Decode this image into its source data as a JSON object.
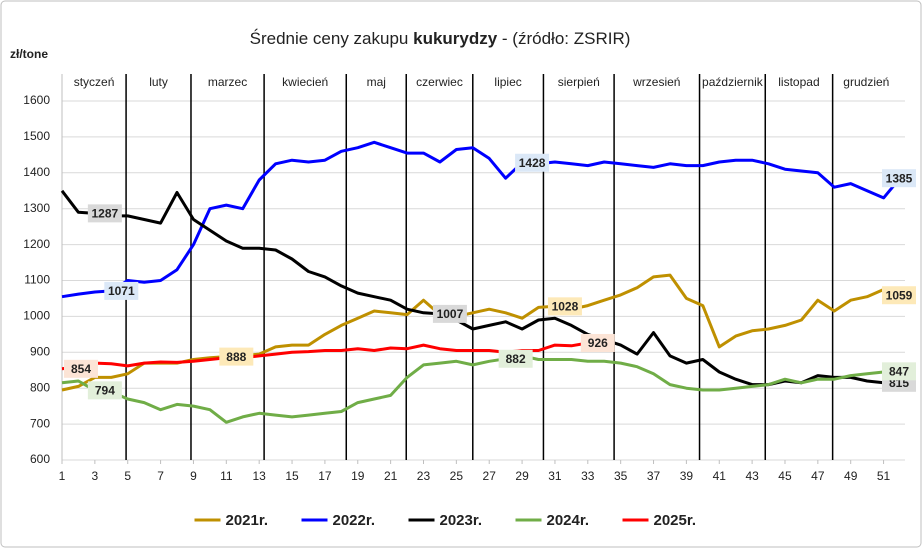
{
  "chart_data": {
    "type": "line",
    "title_parts": [
      {
        "text": "Średnie ceny zakupu ",
        "bold": false
      },
      {
        "text": "kukurydzy",
        "bold": true
      },
      {
        "text": " - (źródło: ZSRIR)",
        "bold": false
      }
    ],
    "y_label": "zł/tone",
    "months": [
      "styczeń",
      "luty",
      "marzec",
      "kwiecień",
      "maj",
      "czerwiec",
      "lipiec",
      "sierpień",
      "wrzesień",
      "październik",
      "listopad",
      "grudzień"
    ],
    "month_boundaries": [
      4.9,
      8.85,
      13.3,
      18.3,
      21.95,
      26.0,
      30.3,
      34.6,
      39.8,
      43.8,
      47.9
    ],
    "x": [
      1,
      2,
      3,
      4,
      5,
      6,
      7,
      8,
      9,
      10,
      11,
      12,
      13,
      14,
      15,
      16,
      17,
      18,
      19,
      20,
      21,
      22,
      23,
      24,
      25,
      26,
      27,
      28,
      29,
      30,
      31,
      32,
      33,
      34,
      35,
      36,
      37,
      38,
      39,
      40,
      41,
      42,
      43,
      44,
      45,
      46,
      47,
      48,
      49,
      50,
      51,
      52
    ],
    "xlim": [
      1,
      52
    ],
    "xticks": [
      1,
      3,
      5,
      7,
      9,
      11,
      13,
      15,
      17,
      19,
      21,
      23,
      25,
      27,
      29,
      31,
      33,
      35,
      37,
      39,
      41,
      43,
      45,
      47,
      49,
      51
    ],
    "ylim": [
      600,
      1600
    ],
    "yticks": [
      600,
      700,
      800,
      900,
      1000,
      1100,
      1200,
      1300,
      1400,
      1500,
      1600
    ],
    "grid": true,
    "series": [
      {
        "name": "2021r.",
        "color": "#bf9000",
        "label_bg": "#fde9b8",
        "values": [
          795,
          805,
          830,
          830,
          840,
          870,
          870,
          870,
          880,
          885,
          888,
          890,
          895,
          915,
          920,
          920,
          950,
          975,
          995,
          1015,
          1010,
          1005,
          1045,
          1005,
          1000,
          1010,
          1020,
          1010,
          995,
          1025,
          1028,
          1020,
          1030,
          1045,
          1060,
          1080,
          1110,
          1115,
          1050,
          1030,
          915,
          945,
          960,
          965,
          975,
          990,
          1045,
          1015,
          1045,
          1055,
          1075,
          1059
        ],
        "value_labels": [
          null,
          null,
          null,
          null,
          null,
          null,
          null,
          null,
          null,
          null,
          "888",
          null,
          null,
          null,
          null,
          null,
          null,
          null,
          null,
          null,
          null,
          null,
          null,
          null,
          null,
          null,
          null,
          null,
          null,
          null,
          "1028",
          null,
          null,
          null,
          null,
          null,
          null,
          null,
          null,
          null,
          null,
          null,
          null,
          null,
          null,
          null,
          null,
          null,
          null,
          null,
          null,
          "1059"
        ]
      },
      {
        "name": "2022r.",
        "color": "#0000ff",
        "label_bg": "#dbe8f7",
        "values": [
          1055,
          1062,
          1068,
          1071,
          1100,
          1095,
          1100,
          1130,
          1200,
          1300,
          1310,
          1300,
          1380,
          1425,
          1435,
          1430,
          1435,
          1460,
          1470,
          1485,
          1470,
          1455,
          1455,
          1430,
          1465,
          1470,
          1440,
          1385,
          1428,
          1425,
          1430,
          1425,
          1420,
          1430,
          1425,
          1420,
          1415,
          1425,
          1420,
          1420,
          1430,
          1435,
          1435,
          1425,
          1410,
          1405,
          1400,
          1360,
          1370,
          1350,
          1330,
          1385
        ],
        "value_labels": [
          null,
          null,
          null,
          "1071",
          null,
          null,
          null,
          null,
          null,
          null,
          null,
          null,
          null,
          null,
          null,
          null,
          null,
          null,
          null,
          null,
          null,
          null,
          null,
          null,
          null,
          null,
          null,
          null,
          "1428",
          null,
          null,
          null,
          null,
          null,
          null,
          null,
          null,
          null,
          null,
          null,
          null,
          null,
          null,
          null,
          null,
          null,
          null,
          null,
          null,
          null,
          null,
          "1385"
        ]
      },
      {
        "name": "2023r.",
        "color": "#000000",
        "label_bg": "#d9d9d9",
        "values": [
          1350,
          1290,
          1287,
          1280,
          1280,
          1270,
          1260,
          1345,
          1270,
          1240,
          1210,
          1190,
          1190,
          1185,
          1160,
          1125,
          1110,
          1085,
          1065,
          1055,
          1045,
          1020,
          1010,
          1007,
          990,
          965,
          975,
          985,
          965,
          990,
          995,
          975,
          950,
          935,
          920,
          895,
          955,
          890,
          870,
          880,
          845,
          825,
          810,
          810,
          820,
          815,
          835,
          830,
          830,
          820,
          815,
          815
        ],
        "value_labels": [
          null,
          null,
          "1287",
          null,
          null,
          null,
          null,
          null,
          null,
          null,
          null,
          null,
          null,
          null,
          null,
          null,
          null,
          null,
          null,
          null,
          null,
          null,
          null,
          "1007",
          null,
          null,
          null,
          null,
          null,
          null,
          null,
          null,
          null,
          null,
          null,
          null,
          null,
          null,
          null,
          null,
          null,
          null,
          null,
          null,
          null,
          null,
          null,
          null,
          null,
          null,
          null,
          "815"
        ]
      },
      {
        "name": "2024r.",
        "color": "#70ad47",
        "label_bg": "#e2efda",
        "values": [
          815,
          820,
          794,
          790,
          770,
          760,
          740,
          755,
          750,
          740,
          705,
          720,
          730,
          725,
          720,
          725,
          730,
          735,
          760,
          770,
          780,
          830,
          865,
          870,
          875,
          865,
          875,
          882,
          890,
          880,
          880,
          880,
          875,
          875,
          870,
          860,
          840,
          810,
          800,
          795,
          795,
          800,
          805,
          810,
          825,
          815,
          825,
          825,
          835,
          840,
          845,
          847
        ],
        "value_labels": [
          null,
          null,
          "794",
          null,
          null,
          null,
          null,
          null,
          null,
          null,
          null,
          null,
          null,
          null,
          null,
          null,
          null,
          null,
          null,
          null,
          null,
          null,
          null,
          null,
          null,
          null,
          null,
          "882",
          null,
          null,
          null,
          null,
          null,
          null,
          null,
          null,
          null,
          null,
          null,
          null,
          null,
          null,
          null,
          null,
          null,
          null,
          null,
          null,
          null,
          null,
          null,
          "847"
        ]
      },
      {
        "name": "2025r.",
        "color": "#ff0000",
        "label_bg": "#fce4d6",
        "values": [
          854,
          860,
          870,
          868,
          862,
          870,
          873,
          872,
          875,
          880,
          885,
          885,
          890,
          895,
          900,
          902,
          905,
          905,
          910,
          905,
          912,
          910,
          920,
          910,
          905,
          905,
          905,
          900,
          905,
          905,
          920,
          918,
          926,
          null,
          null,
          null,
          null,
          null,
          null,
          null,
          null,
          null,
          null,
          null,
          null,
          null,
          null,
          null,
          null,
          null,
          null,
          null
        ],
        "value_labels": [
          "854",
          null,
          null,
          null,
          null,
          null,
          null,
          null,
          null,
          null,
          null,
          null,
          null,
          null,
          null,
          null,
          null,
          null,
          null,
          null,
          null,
          null,
          null,
          null,
          null,
          null,
          null,
          null,
          null,
          null,
          null,
          null,
          "926",
          null,
          null,
          null,
          null,
          null,
          null,
          null,
          null,
          null,
          null,
          null,
          null,
          null,
          null,
          null,
          null,
          null,
          null,
          null
        ]
      }
    ]
  }
}
